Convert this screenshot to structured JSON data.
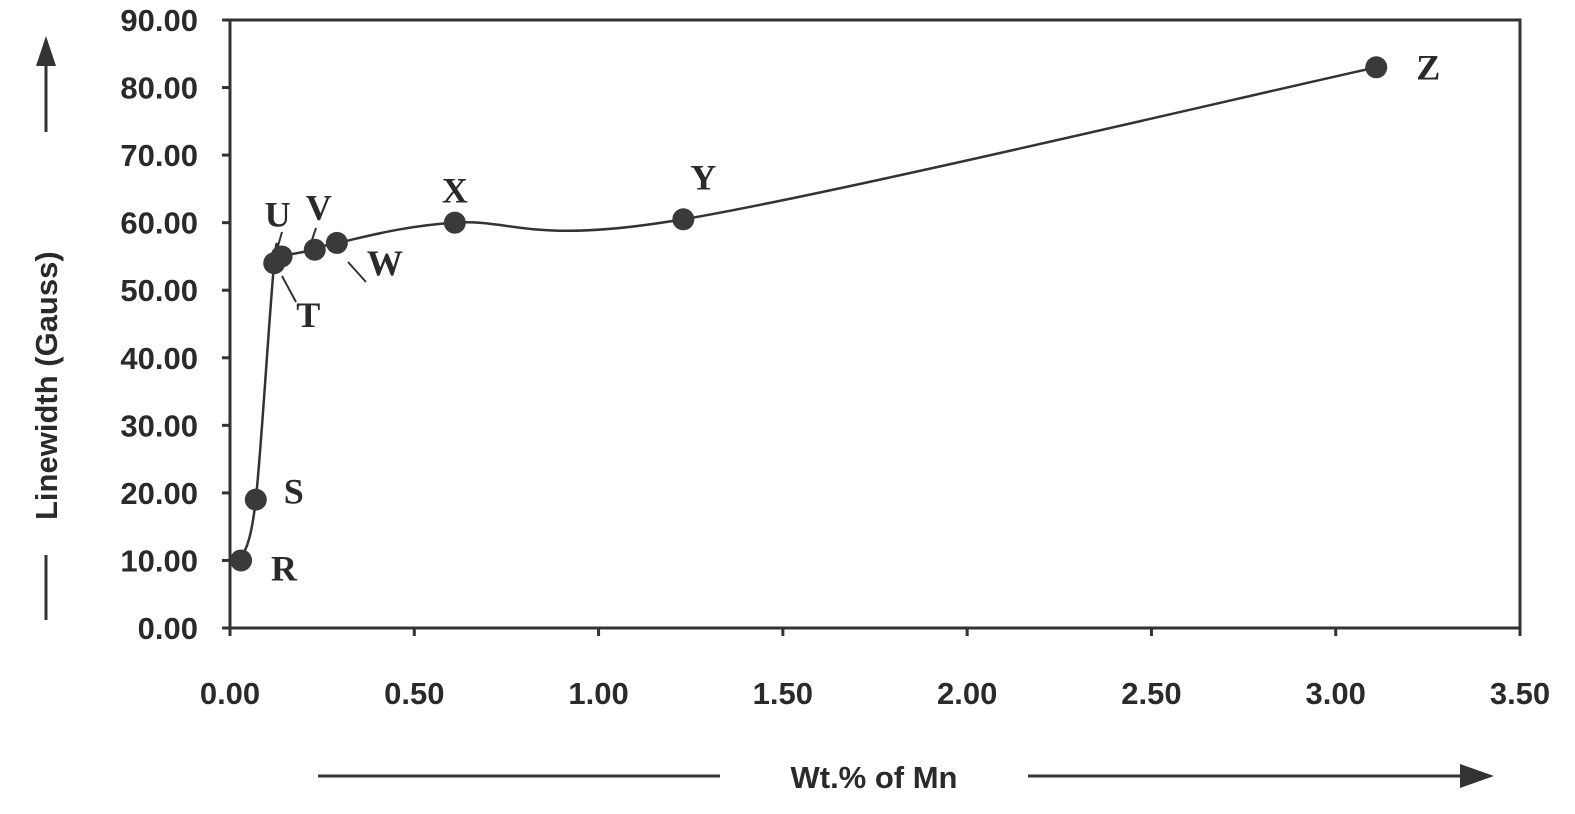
{
  "chart_data": {
    "type": "line",
    "xlabel": "Wt.% of Mn",
    "ylabel": "Linewidth (Gauss)",
    "xlim": [
      0,
      3.5
    ],
    "ylim": [
      0,
      90
    ],
    "grid": false,
    "x_ticks": [
      "0.00",
      "0.50",
      "1.00",
      "1.50",
      "2.00",
      "2.50",
      "3.00",
      "3.50"
    ],
    "y_ticks": [
      "0.00",
      "10.00",
      "20.00",
      "30.00",
      "40.00",
      "50.00",
      "60.00",
      "70.00",
      "80.00",
      "90.00"
    ],
    "series": [
      {
        "points": [
          {
            "label": "R",
            "x": 0.03,
            "y": 10
          },
          {
            "label": "S",
            "x": 0.07,
            "y": 19
          },
          {
            "label": "T",
            "x": 0.12,
            "y": 54
          },
          {
            "label": "U",
            "x": 0.14,
            "y": 55
          },
          {
            "label": "V",
            "x": 0.23,
            "y": 56
          },
          {
            "label": "W",
            "x": 0.29,
            "y": 57
          },
          {
            "label": "X",
            "x": 0.61,
            "y": 60
          },
          {
            "label": "Y",
            "x": 1.23,
            "y": 60.5
          },
          {
            "label": "Z",
            "x": 3.11,
            "y": 83
          }
        ]
      }
    ]
  }
}
